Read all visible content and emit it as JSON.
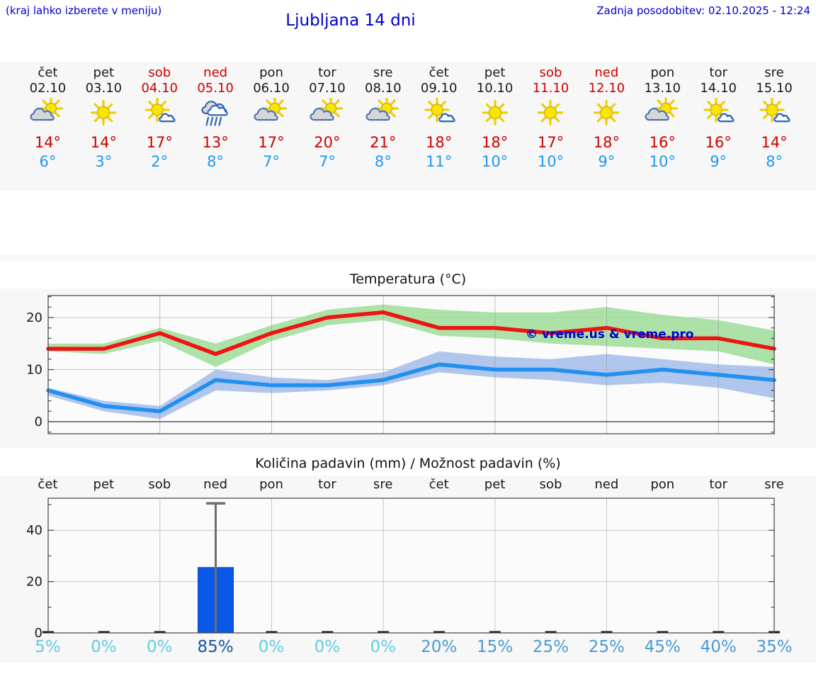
{
  "header": {
    "hint": "(kraj lahko izberete v meniju)",
    "title": "Ljubljana 14 dni",
    "last_update": "Zadnja posodobitev: 02.10.2025 - 12:24"
  },
  "colors": {
    "link_blue": "#0000cc",
    "weekend_red": "#cc0000",
    "high_red": "#cc0000",
    "low_blue": "#2196f3",
    "prob_low": "#63cbe4",
    "prob_mid": "#4a9bd0",
    "prob_high": "#16559f",
    "bar_blue": "#0a58e6",
    "line_red": "#ee1414",
    "line_blue": "#2290f0",
    "band_green": "#9edd98",
    "band_blue": "#9db9e8",
    "section_bg": "#f7f7f7",
    "plot_bg": "#fbfbfb",
    "grid_gray": "#c8c8c8",
    "frame_gray": "#444444",
    "whisker_gray": "#6e6e6e"
  },
  "forecast": {
    "days": [
      {
        "name": "čet",
        "date": "02.10",
        "weekend": false,
        "icon": "sun-cloud",
        "high": "14°",
        "low": "6°"
      },
      {
        "name": "pet",
        "date": "03.10",
        "weekend": false,
        "icon": "sun",
        "high": "14°",
        "low": "3°"
      },
      {
        "name": "sob",
        "date": "04.10",
        "weekend": true,
        "icon": "sun-small-cloud",
        "high": "17°",
        "low": "2°"
      },
      {
        "name": "ned",
        "date": "05.10",
        "weekend": true,
        "icon": "rain",
        "high": "13°",
        "low": "8°"
      },
      {
        "name": "pon",
        "date": "06.10",
        "weekend": false,
        "icon": "sun-cloud",
        "high": "17°",
        "low": "7°"
      },
      {
        "name": "tor",
        "date": "07.10",
        "weekend": false,
        "icon": "sun-cloud",
        "high": "20°",
        "low": "7°"
      },
      {
        "name": "sre",
        "date": "08.10",
        "weekend": false,
        "icon": "sun-cloud",
        "high": "21°",
        "low": "8°"
      },
      {
        "name": "čet",
        "date": "09.10",
        "weekend": false,
        "icon": "sun-small-cloud",
        "high": "18°",
        "low": "11°"
      },
      {
        "name": "pet",
        "date": "10.10",
        "weekend": false,
        "icon": "sun",
        "high": "18°",
        "low": "10°"
      },
      {
        "name": "sob",
        "date": "11.10",
        "weekend": true,
        "icon": "sun",
        "high": "17°",
        "low": "10°"
      },
      {
        "name": "ned",
        "date": "12.10",
        "weekend": true,
        "icon": "sun",
        "high": "18°",
        "low": "9°"
      },
      {
        "name": "pon",
        "date": "13.10",
        "weekend": false,
        "icon": "sun-cloud",
        "high": "16°",
        "low": "10°"
      },
      {
        "name": "tor",
        "date": "14.10",
        "weekend": false,
        "icon": "sun-small-cloud",
        "high": "16°",
        "low": "9°"
      },
      {
        "name": "sre",
        "date": "15.10",
        "weekend": false,
        "icon": "sun-small-cloud",
        "high": "14°",
        "low": "8°"
      }
    ]
  },
  "chart_data": [
    {
      "type": "line",
      "title": "Temperatura (°C)",
      "annotation": "© vreme.us & vreme.pro",
      "categories": [
        "čet 02.10",
        "pet 03.10",
        "sob 04.10",
        "ned 05.10",
        "pon 06.10",
        "tor 07.10",
        "sre 08.10",
        "čet 09.10",
        "pet 10.10",
        "sob 11.10",
        "ned 12.10",
        "pon 13.10",
        "tor 14.10",
        "sre 15.10"
      ],
      "series": [
        {
          "name": "max temperature",
          "values": [
            14,
            14,
            17,
            13,
            17,
            20,
            21,
            18,
            18,
            17,
            18,
            16,
            16,
            14
          ],
          "band_upper": [
            15,
            15,
            18,
            15,
            18.5,
            21.5,
            22.5,
            21.5,
            21,
            21,
            22,
            20.5,
            19.5,
            17.5
          ],
          "band_lower": [
            13.5,
            13,
            15.5,
            10.5,
            15.5,
            18.5,
            19.5,
            16.5,
            16,
            15,
            14.5,
            14,
            13.5,
            11
          ]
        },
        {
          "name": "min temperature",
          "values": [
            6,
            3,
            2,
            8,
            7,
            7,
            8,
            11,
            10,
            10,
            9,
            10,
            9,
            8
          ],
          "band_upper": [
            6.5,
            4,
            3,
            10,
            8.5,
            8,
            9.5,
            13.5,
            12.5,
            12,
            13,
            12,
            11,
            10.5
          ],
          "band_lower": [
            5,
            2,
            0.5,
            6,
            5.5,
            6,
            7,
            9.5,
            8.5,
            8,
            7,
            7.5,
            6.5,
            4.5
          ]
        }
      ],
      "ylim": [
        -2.3,
        24.2
      ],
      "yticks": [
        0,
        10,
        20
      ],
      "grid": true,
      "legend": "none"
    },
    {
      "type": "bar",
      "title": "Količina padavin (mm) / Možnost padavin (%)",
      "categories": [
        "čet",
        "pet",
        "sob",
        "ned",
        "pon",
        "tor",
        "sre",
        "čet",
        "pet",
        "sob",
        "ned",
        "pon",
        "tor",
        "sre"
      ],
      "values_mm": [
        0,
        0,
        0,
        25.5,
        0,
        0,
        0,
        0,
        0,
        0,
        0,
        0,
        0,
        0
      ],
      "whisker": {
        "day_index": 3,
        "max_mm": 50.5
      },
      "probabilities_pct": [
        5,
        0,
        0,
        85,
        0,
        0,
        0,
        20,
        15,
        25,
        25,
        45,
        40,
        35
      ],
      "ylim": [
        0,
        52.5
      ],
      "yticks": [
        0,
        20,
        40
      ],
      "grid": true
    }
  ]
}
